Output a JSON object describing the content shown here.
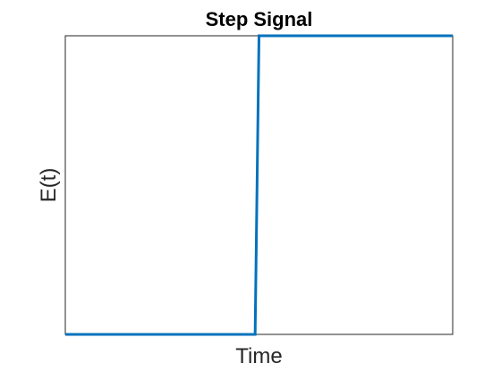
{
  "chart_data": {
    "type": "line",
    "title": "Step Signal",
    "xlabel": "Time",
    "ylabel": "E(t)",
    "xlim": [
      0,
      1
    ],
    "ylim": [
      0,
      1
    ],
    "grid": false,
    "xticks": [],
    "yticks": [],
    "series": [
      {
        "x": [
          0,
          0.49,
          0.5,
          1
        ],
        "y": [
          0,
          0,
          1,
          1
        ]
      }
    ],
    "colors": {
      "series": "#0072BD",
      "axes": "#262626",
      "background": "#ffffff"
    }
  }
}
